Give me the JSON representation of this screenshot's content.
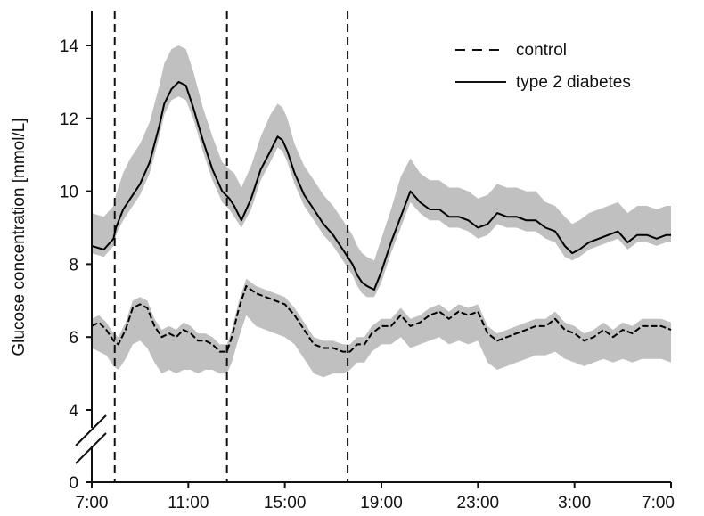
{
  "chart_data": {
    "type": "line",
    "title": "",
    "xlabel": "",
    "ylabel": "Glucose concentration [mmol/L]",
    "x_unit": "hours elapsed from 7:00",
    "xlim": [
      0,
      24
    ],
    "ylim": [
      0,
      15
    ],
    "axis_break": {
      "from": 0.8,
      "to": 3.5
    },
    "x_ticks": [
      {
        "value": 0,
        "label": "7:00"
      },
      {
        "value": 4,
        "label": "11:00"
      },
      {
        "value": 8,
        "label": "15:00"
      },
      {
        "value": 12,
        "label": "19:00"
      },
      {
        "value": 16,
        "label": "23:00"
      },
      {
        "value": 20,
        "label": "3:00"
      },
      {
        "value": 24,
        "label": "7:00"
      }
    ],
    "y_ticks": [
      {
        "value": 0,
        "label": "0"
      },
      {
        "value": 4,
        "label": "4"
      },
      {
        "value": 6,
        "label": "6"
      },
      {
        "value": 8,
        "label": "8"
      },
      {
        "value": 10,
        "label": "10"
      },
      {
        "value": 12,
        "label": "12"
      },
      {
        "value": 14,
        "label": "14"
      }
    ],
    "meal_markers": [
      0.95,
      5.6,
      10.6
    ],
    "band_color": "#c0c0c0",
    "line_color": "#000000",
    "legend_position": "top-right",
    "series": [
      {
        "name": "type 2 diabetes",
        "style": "solid",
        "x": [
          0,
          0.5,
          0.9,
          1.0,
          1.3,
          1.6,
          2.0,
          2.4,
          2.8,
          3.0,
          3.3,
          3.6,
          3.9,
          4.2,
          4.6,
          5.0,
          5.4,
          5.7,
          5.9,
          6.2,
          6.6,
          7.0,
          7.4,
          7.7,
          7.9,
          8.1,
          8.4,
          8.8,
          9.2,
          9.6,
          10.0,
          10.4,
          10.8,
          11.0,
          11.2,
          11.4,
          11.7,
          12.0,
          12.4,
          12.8,
          13.2,
          13.6,
          14.0,
          14.4,
          14.8,
          15.2,
          15.6,
          16.0,
          16.4,
          16.8,
          17.2,
          17.6,
          18.0,
          18.4,
          18.8,
          19.2,
          19.6,
          19.9,
          20.2,
          20.6,
          21.0,
          21.4,
          21.8,
          22.2,
          22.6,
          23.0,
          23.4,
          23.8,
          24.0
        ],
        "values": [
          8.5,
          8.4,
          8.7,
          9.0,
          9.5,
          9.8,
          10.2,
          10.8,
          11.8,
          12.4,
          12.8,
          13.0,
          12.9,
          12.3,
          11.4,
          10.6,
          10.0,
          9.8,
          9.6,
          9.2,
          9.8,
          10.6,
          11.1,
          11.5,
          11.4,
          11.1,
          10.5,
          9.9,
          9.5,
          9.1,
          8.8,
          8.4,
          8.0,
          7.7,
          7.5,
          7.4,
          7.3,
          7.8,
          8.6,
          9.3,
          10.0,
          9.7,
          9.5,
          9.5,
          9.3,
          9.3,
          9.2,
          9.0,
          9.1,
          9.4,
          9.3,
          9.3,
          9.2,
          9.2,
          9.0,
          8.9,
          8.5,
          8.3,
          8.4,
          8.6,
          8.7,
          8.8,
          8.9,
          8.6,
          8.8,
          8.8,
          8.7,
          8.8,
          8.8
        ],
        "band_upper": [
          9.4,
          9.3,
          9.6,
          9.9,
          10.5,
          10.9,
          11.3,
          11.9,
          12.9,
          13.5,
          13.9,
          14.0,
          13.9,
          13.3,
          12.3,
          11.5,
          10.8,
          10.6,
          10.5,
          10.1,
          10.7,
          11.5,
          12.1,
          12.4,
          12.3,
          12.0,
          11.3,
          10.7,
          10.3,
          9.9,
          9.6,
          9.2,
          8.8,
          8.5,
          8.3,
          8.2,
          8.1,
          8.7,
          9.5,
          10.4,
          10.9,
          10.5,
          10.3,
          10.3,
          10.1,
          10.1,
          10.0,
          9.8,
          9.9,
          10.2,
          10.1,
          10.1,
          10.0,
          10.0,
          9.7,
          9.6,
          9.3,
          9.1,
          9.2,
          9.4,
          9.5,
          9.6,
          9.7,
          9.4,
          9.6,
          9.6,
          9.5,
          9.6,
          9.6
        ],
        "band_lower": [
          8.3,
          8.2,
          8.5,
          8.8,
          9.2,
          9.5,
          9.9,
          10.5,
          11.5,
          12.1,
          12.5,
          12.6,
          12.5,
          12.0,
          11.1,
          10.3,
          9.7,
          9.5,
          9.3,
          9.0,
          9.5,
          10.3,
          10.8,
          11.2,
          11.1,
          10.8,
          10.2,
          9.6,
          9.2,
          8.8,
          8.5,
          8.1,
          7.7,
          7.4,
          7.2,
          7.1,
          7.1,
          7.5,
          8.3,
          9.0,
          9.7,
          9.4,
          9.2,
          9.2,
          9.0,
          9.0,
          8.9,
          8.7,
          8.8,
          9.1,
          9.0,
          9.0,
          8.9,
          8.9,
          8.7,
          8.6,
          8.2,
          8.1,
          8.2,
          8.4,
          8.5,
          8.6,
          8.7,
          8.4,
          8.6,
          8.6,
          8.5,
          8.6,
          8.6
        ]
      },
      {
        "name": "control",
        "style": "dashed",
        "x": [
          0,
          0.3,
          0.6,
          0.9,
          1.1,
          1.4,
          1.7,
          2.0,
          2.3,
          2.6,
          2.9,
          3.2,
          3.5,
          3.8,
          4.1,
          4.4,
          4.7,
          5.0,
          5.3,
          5.6,
          5.8,
          6.1,
          6.4,
          6.8,
          7.2,
          7.6,
          8.0,
          8.4,
          8.8,
          9.2,
          9.6,
          10.0,
          10.4,
          10.7,
          11.0,
          11.3,
          11.6,
          12.0,
          12.4,
          12.8,
          13.2,
          13.6,
          14.0,
          14.4,
          14.8,
          15.2,
          15.6,
          16.0,
          16.4,
          16.8,
          17.2,
          17.6,
          18.0,
          18.4,
          18.8,
          19.2,
          19.6,
          20.0,
          20.4,
          20.8,
          21.2,
          21.6,
          22.0,
          22.4,
          22.8,
          23.2,
          23.6,
          24.0
        ],
        "values": [
          6.3,
          6.4,
          6.2,
          5.9,
          5.8,
          6.2,
          6.8,
          6.9,
          6.8,
          6.3,
          6.0,
          6.1,
          6.0,
          6.2,
          6.1,
          5.9,
          5.9,
          5.8,
          5.6,
          5.6,
          6.0,
          6.8,
          7.4,
          7.2,
          7.1,
          7.0,
          6.9,
          6.6,
          6.2,
          5.8,
          5.7,
          5.7,
          5.6,
          5.6,
          5.8,
          5.8,
          6.1,
          6.3,
          6.3,
          6.6,
          6.3,
          6.4,
          6.6,
          6.7,
          6.5,
          6.7,
          6.6,
          6.7,
          6.1,
          5.9,
          6.0,
          6.1,
          6.2,
          6.3,
          6.3,
          6.5,
          6.2,
          6.1,
          5.9,
          6.0,
          6.2,
          6.0,
          6.2,
          6.1,
          6.3,
          6.3,
          6.3,
          6.2
        ],
        "band_upper": [
          6.5,
          6.6,
          6.4,
          6.1,
          6.0,
          6.4,
          7.0,
          7.1,
          7.0,
          6.5,
          6.2,
          6.3,
          6.2,
          6.4,
          6.3,
          6.1,
          6.1,
          6.0,
          5.8,
          5.8,
          6.2,
          7.0,
          7.6,
          7.4,
          7.3,
          7.2,
          7.1,
          6.8,
          6.4,
          6.0,
          5.9,
          5.9,
          5.8,
          5.8,
          6.0,
          6.0,
          6.3,
          6.5,
          6.5,
          6.8,
          6.5,
          6.6,
          6.8,
          6.9,
          6.7,
          6.9,
          6.8,
          6.9,
          6.3,
          6.1,
          6.2,
          6.3,
          6.4,
          6.5,
          6.5,
          6.7,
          6.4,
          6.3,
          6.1,
          6.2,
          6.4,
          6.2,
          6.4,
          6.3,
          6.5,
          6.5,
          6.5,
          6.4
        ],
        "band_lower": [
          5.7,
          5.6,
          5.5,
          5.2,
          5.1,
          5.4,
          5.8,
          5.9,
          5.7,
          5.3,
          5.0,
          5.1,
          5.0,
          5.1,
          5.1,
          5.0,
          5.1,
          5.1,
          5.0,
          5.0,
          5.3,
          6.0,
          6.6,
          6.3,
          6.2,
          6.1,
          6.0,
          5.8,
          5.4,
          5.0,
          4.9,
          5.0,
          5.0,
          5.1,
          5.3,
          5.3,
          5.6,
          5.8,
          5.8,
          6.0,
          5.7,
          5.8,
          5.9,
          6.0,
          5.8,
          5.9,
          5.8,
          5.9,
          5.3,
          5.1,
          5.2,
          5.3,
          5.4,
          5.5,
          5.5,
          5.6,
          5.4,
          5.3,
          5.2,
          5.3,
          5.4,
          5.3,
          5.4,
          5.3,
          5.4,
          5.4,
          5.4,
          5.3
        ]
      }
    ]
  }
}
